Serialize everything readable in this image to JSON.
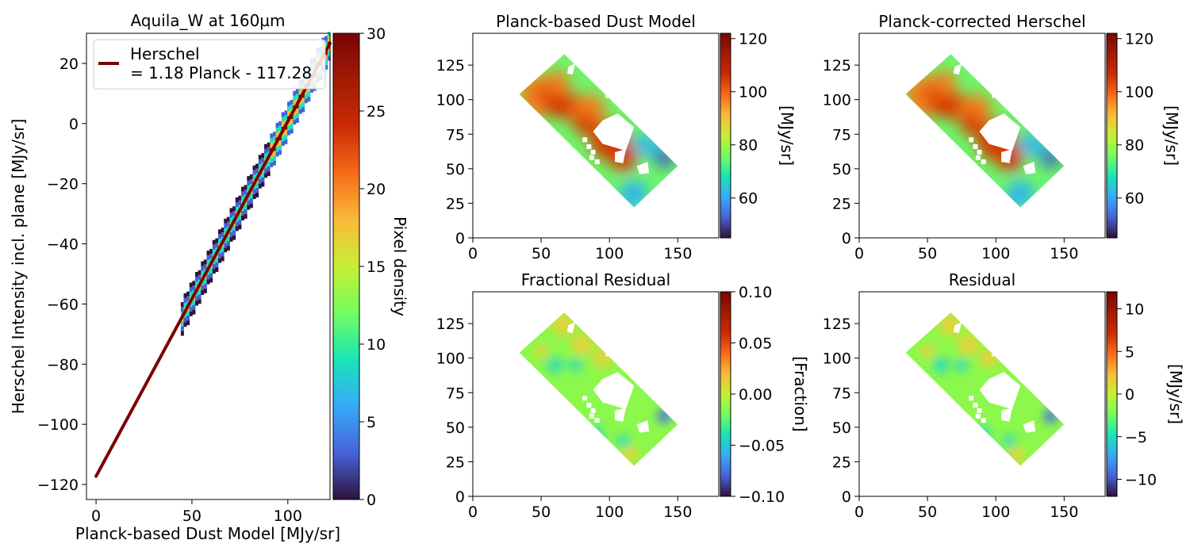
{
  "chart_data": [
    {
      "type": "heatmap",
      "subtype": "scatter-density-with-fit",
      "title": "Aquila_W at 160µm",
      "xlabel": "Planck-based Dust Model [MJy/sr]",
      "ylabel": "Herschel Intensity incl. plane [MJy/sr]",
      "xlim": [
        -5,
        122
      ],
      "ylim": [
        -125,
        30
      ],
      "xticks": [
        0,
        50,
        100
      ],
      "yticks": [
        -120,
        -100,
        -80,
        -60,
        -40,
        -20,
        0,
        20
      ],
      "fit": {
        "slope": 1.18,
        "intercept": -117.28,
        "color": "#7a0403",
        "x_range": [
          0,
          122
        ]
      },
      "legend": {
        "lines": [
          "Herschel",
          "= 1.18 Planck - 117.28"
        ],
        "placement": "upper-left"
      },
      "density_band": {
        "x_range": [
          45,
          122
        ],
        "colors": [
          "#30123b",
          "#4662d7",
          "#1ae4b6",
          "#faba39",
          "#7a0403"
        ]
      },
      "colorbar": {
        "label": "Pixel density",
        "min": 0,
        "max": 30,
        "ticks": [
          0,
          5,
          10,
          15,
          20,
          25,
          30
        ]
      },
      "colormap": "turbo"
    },
    {
      "type": "heatmap",
      "title": "Planck-based Dust Model",
      "xlim": [
        0,
        180
      ],
      "ylim": [
        0,
        148
      ],
      "xticks": [
        0,
        50,
        100,
        150
      ],
      "yticks": [
        0,
        25,
        50,
        75,
        100,
        125
      ],
      "colorbar": {
        "label": "[MJy/sr]",
        "min": 45,
        "max": 122,
        "ticks": [
          60,
          80,
          100,
          120
        ]
      },
      "colormap": "turbo"
    },
    {
      "type": "heatmap",
      "title": "Planck-corrected Herschel",
      "xlim": [
        0,
        180
      ],
      "ylim": [
        0,
        148
      ],
      "xticks": [
        0,
        50,
        100,
        150
      ],
      "yticks": [
        0,
        25,
        50,
        75,
        100,
        125
      ],
      "colorbar": {
        "label": "[MJy/sr]",
        "min": 45,
        "max": 122,
        "ticks": [
          60,
          80,
          100,
          120
        ]
      },
      "colormap": "turbo"
    },
    {
      "type": "heatmap",
      "title": "Fractional Residual",
      "xlim": [
        0,
        180
      ],
      "ylim": [
        0,
        148
      ],
      "xticks": [
        0,
        50,
        100,
        150
      ],
      "yticks": [
        0,
        25,
        50,
        75,
        100,
        125
      ],
      "colorbar": {
        "label": "[Fraction]",
        "min": -0.1,
        "max": 0.1,
        "ticks": [
          -0.1,
          -0.05,
          0.0,
          0.05,
          0.1
        ],
        "tick_labels": [
          "−0.10",
          "−0.05",
          "0.00",
          "0.05",
          "0.10"
        ]
      },
      "colormap": "turbo"
    },
    {
      "type": "heatmap",
      "title": "Residual",
      "xlim": [
        0,
        180
      ],
      "ylim": [
        0,
        148
      ],
      "xticks": [
        0,
        50,
        100,
        150
      ],
      "yticks": [
        0,
        25,
        50,
        75,
        100,
        125
      ],
      "colorbar": {
        "label": "[MJy/sr]",
        "min": -12,
        "max": 12,
        "ticks": [
          -10,
          -5,
          0,
          5,
          10
        ]
      },
      "colormap": "turbo"
    }
  ],
  "map_footprint": [
    [
      34,
      104
    ],
    [
      67,
      133
    ],
    [
      150,
      52
    ],
    [
      118,
      22
    ]
  ],
  "map_holes": [
    [
      [
        95,
        85
      ],
      [
        106,
        90
      ],
      [
        118,
        80
      ],
      [
        112,
        63
      ],
      [
        95,
        68
      ],
      [
        88,
        77
      ]
    ],
    [
      [
        104,
        62
      ],
      [
        112,
        64
      ],
      [
        110,
        54
      ],
      [
        104,
        55
      ]
    ],
    [
      [
        120,
        52
      ],
      [
        128,
        55
      ],
      [
        129,
        47
      ],
      [
        122,
        46
      ]
    ],
    [
      [
        70,
        124
      ],
      [
        75,
        126
      ],
      [
        73,
        118
      ],
      [
        69,
        119
      ]
    ]
  ],
  "map_specks": [
    [
      85,
      66
    ],
    [
      88,
      62
    ],
    [
      87,
      58
    ],
    [
      82,
      71
    ],
    [
      91,
      55
    ],
    [
      120,
      91
    ],
    [
      99,
      103
    ]
  ],
  "map_colors": {
    "dust": {
      "base": "#6ef56c",
      "hot": "#d93806",
      "warm": "#f47b1c",
      "cool": "#2eb6ee",
      "cold": "#3e4ec2"
    },
    "resid": {
      "base": "#8cf84b",
      "warm": "#e5d33a",
      "cool": "#35ddb2",
      "cold": "#4c6de6"
    }
  }
}
